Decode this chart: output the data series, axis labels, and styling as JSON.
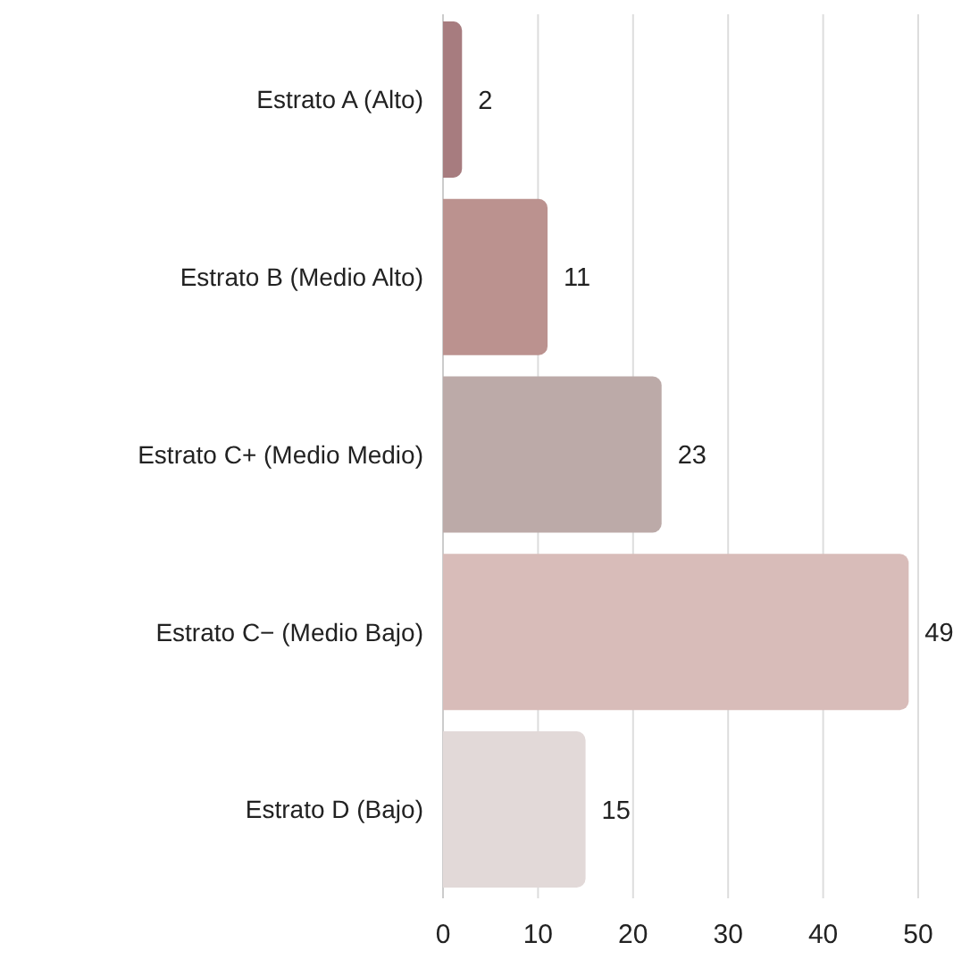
{
  "chart_data": {
    "type": "bar",
    "orientation": "horizontal",
    "categories": [
      "Estrato A (Alto)",
      "Estrato B (Medio Alto)",
      "Estrato C+ (Medio Medio)",
      "Estrato C− (Medio Bajo)",
      "Estrato D (Bajo)"
    ],
    "values": [
      2,
      11,
      23,
      49,
      15
    ],
    "colors": [
      "#a77c7f",
      "#bb928f",
      "#bcaaa8",
      "#d8bcb9",
      "#e2d9d8"
    ],
    "xlim": [
      0,
      50
    ],
    "xticks": [
      0,
      10,
      20,
      30,
      40,
      50
    ],
    "grid": "x",
    "data_labels": true
  }
}
